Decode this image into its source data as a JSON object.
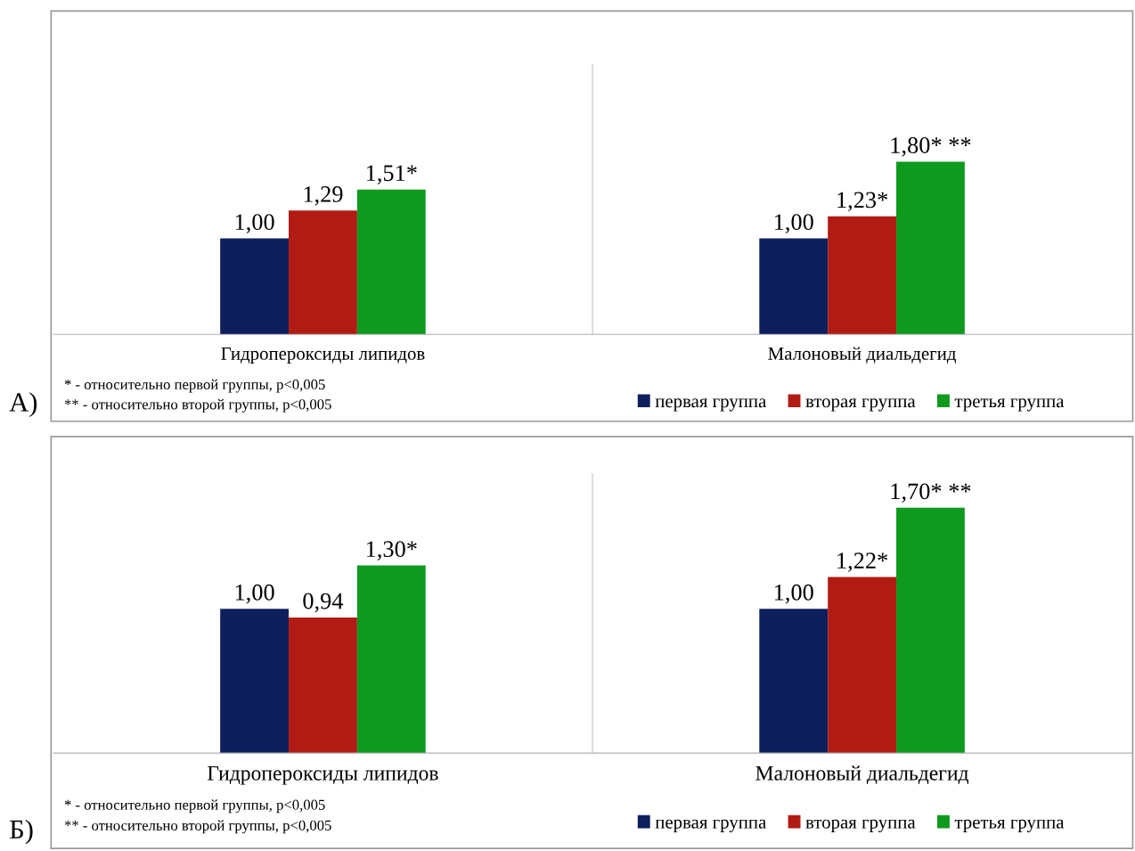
{
  "chart_data": [
    {
      "type": "bar",
      "categories": [
        "Гидропероксиды липидов",
        "Малоновый диальдегид"
      ],
      "series": [
        {
          "name": "первая группа",
          "color": "#0d1f5c",
          "values": [
            1.0,
            1.0
          ],
          "value_labels": [
            "1,00",
            "1,00"
          ]
        },
        {
          "name": "вторая группа",
          "color": "#b01c14",
          "values": [
            1.29,
            1.23
          ],
          "value_labels": [
            "1,29",
            "1,23*"
          ]
        },
        {
          "name": "третья группа",
          "color": "#0e9a1e",
          "values": [
            1.51,
            1.8
          ],
          "value_labels": [
            "1,51*",
            "1,80* **"
          ]
        }
      ],
      "annotations": [
        "А)",
        "* - относительно первой группы, p<0,005",
        "** - относительно второй группы, p<0,005"
      ],
      "legend": "bottom",
      "tick_labels": "x",
      "grid": false
    },
    {
      "type": "bar",
      "categories": [
        "Гидропероксиды липидов",
        "Малоновый диальдегид"
      ],
      "series": [
        {
          "name": "первая группа",
          "color": "#0d1f5c",
          "values": [
            1.0,
            1.0
          ],
          "value_labels": [
            "1,00",
            "1,00"
          ]
        },
        {
          "name": "вторая группа",
          "color": "#b01c14",
          "values": [
            0.94,
            1.22
          ],
          "value_labels": [
            "0,94",
            "1,22*"
          ]
        },
        {
          "name": "третья группа",
          "color": "#0e9a1e",
          "values": [
            1.3,
            1.7
          ],
          "value_labels": [
            "1,30*",
            "1,70* **"
          ]
        }
      ],
      "annotations": [
        "Б)",
        "* - относительно первой группы, p<0,005",
        "** - относительно второй группы, p<0,005"
      ],
      "legend": "bottom",
      "tick_labels": "x",
      "grid": false
    }
  ]
}
